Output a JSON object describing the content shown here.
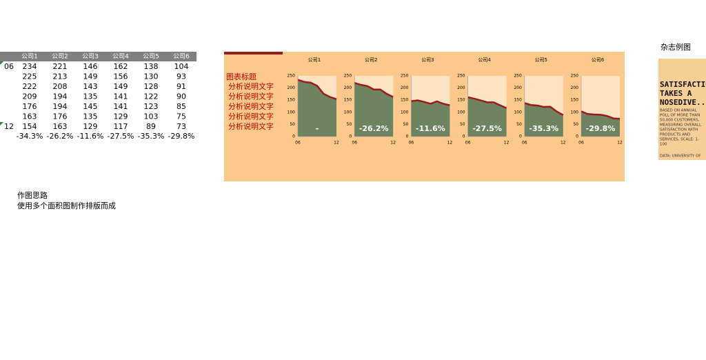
{
  "table": {
    "header": [
      "公司1",
      "公司2",
      "公司3",
      "公司4",
      "公司5",
      "公司6"
    ],
    "row_labels": [
      "06",
      null,
      null,
      null,
      null,
      null,
      "12"
    ],
    "rows": [
      [
        234,
        221,
        146,
        162,
        138,
        104
      ],
      [
        225,
        213,
        149,
        156,
        130,
        93
      ],
      [
        222,
        208,
        143,
        149,
        128,
        91
      ],
      [
        209,
        194,
        135,
        141,
        122,
        90
      ],
      [
        176,
        194,
        145,
        141,
        123,
        85
      ],
      [
        163,
        176,
        135,
        129,
        103,
        75
      ],
      [
        154,
        163,
        129,
        117,
        89,
        73
      ]
    ],
    "change": [
      "-34.3%",
      "-26.2%",
      "-11.6%",
      "-27.5%",
      "-35.3%",
      "-29.8%"
    ]
  },
  "chart_data": [
    {
      "type": "area",
      "title": "公司1",
      "categories": [
        "06",
        null,
        null,
        null,
        null,
        null,
        "12"
      ],
      "values": [
        234,
        225,
        222,
        209,
        176,
        163,
        154
      ],
      "annotation": "-",
      "ylim": [
        0,
        250
      ],
      "yticks": [
        0,
        50,
        100,
        150,
        200,
        250
      ],
      "color": "#6e8460",
      "line_color": "#9c1a1a"
    },
    {
      "type": "area",
      "title": "公司2",
      "categories": [
        "06",
        null,
        null,
        null,
        null,
        null,
        "12"
      ],
      "values": [
        221,
        213,
        208,
        194,
        194,
        176,
        163
      ],
      "annotation": "-26.2%",
      "ylim": [
        0,
        250
      ],
      "yticks": [
        0,
        50,
        100,
        150,
        200,
        250
      ],
      "color": "#6e8460",
      "line_color": "#9c1a1a"
    },
    {
      "type": "area",
      "title": "公司3",
      "categories": [
        "06",
        null,
        null,
        null,
        null,
        null,
        "12"
      ],
      "values": [
        146,
        149,
        143,
        135,
        145,
        135,
        129
      ],
      "annotation": "-11.6%",
      "ylim": [
        0,
        250
      ],
      "yticks": [
        0,
        50,
        100,
        150,
        200,
        250
      ],
      "color": "#6e8460",
      "line_color": "#9c1a1a"
    },
    {
      "type": "area",
      "title": "公司4",
      "categories": [
        "06",
        null,
        null,
        null,
        null,
        null,
        "12"
      ],
      "values": [
        162,
        156,
        149,
        141,
        141,
        129,
        117
      ],
      "annotation": "-27.5%",
      "ylim": [
        0,
        250
      ],
      "yticks": [
        0,
        50,
        100,
        150,
        200,
        250
      ],
      "color": "#6e8460",
      "line_color": "#9c1a1a"
    },
    {
      "type": "area",
      "title": "公司5",
      "categories": [
        "06",
        null,
        null,
        null,
        null,
        null,
        "12"
      ],
      "values": [
        138,
        130,
        128,
        122,
        123,
        103,
        89
      ],
      "annotation": "-35.3%",
      "ylim": [
        0,
        250
      ],
      "yticks": [
        0,
        50,
        100,
        150,
        200,
        250
      ],
      "color": "#6e8460",
      "line_color": "#9c1a1a"
    },
    {
      "type": "area",
      "title": "公司6",
      "categories": [
        "06",
        null,
        null,
        null,
        null,
        null,
        "12"
      ],
      "values": [
        104,
        93,
        91,
        90,
        85,
        75,
        73
      ],
      "annotation": "-29.8%",
      "ylim": [
        0,
        250
      ],
      "yticks": [
        0,
        50,
        100,
        150,
        200,
        250
      ],
      "color": "#6e8460",
      "line_color": "#9c1a1a"
    }
  ],
  "panel": {
    "title": "图表标题",
    "notes": [
      "分析说明文字",
      "分析说明文字",
      "分析说明文字",
      "分析说明文字",
      "分析说明文字"
    ]
  },
  "notes": {
    "title": "作图思路",
    "text": "使用多个面积图制作排版而成"
  },
  "magazine": {
    "label": "杂志例图",
    "headline": [
      "SATISFACTION",
      "TAKES A",
      "NOSEDIVE..."
    ],
    "body": [
      "BASED ON ANNUAL",
      "POLL OF MORE THAN",
      "50,000 CUSTOMERS,",
      "MEASURING OVERALL",
      "SATISFACTION WITH",
      "PRODUCTS AND",
      "SERVICES, SCALE: 1-",
      "100"
    ],
    "source": "DATA: UNIVERSITY OF"
  }
}
